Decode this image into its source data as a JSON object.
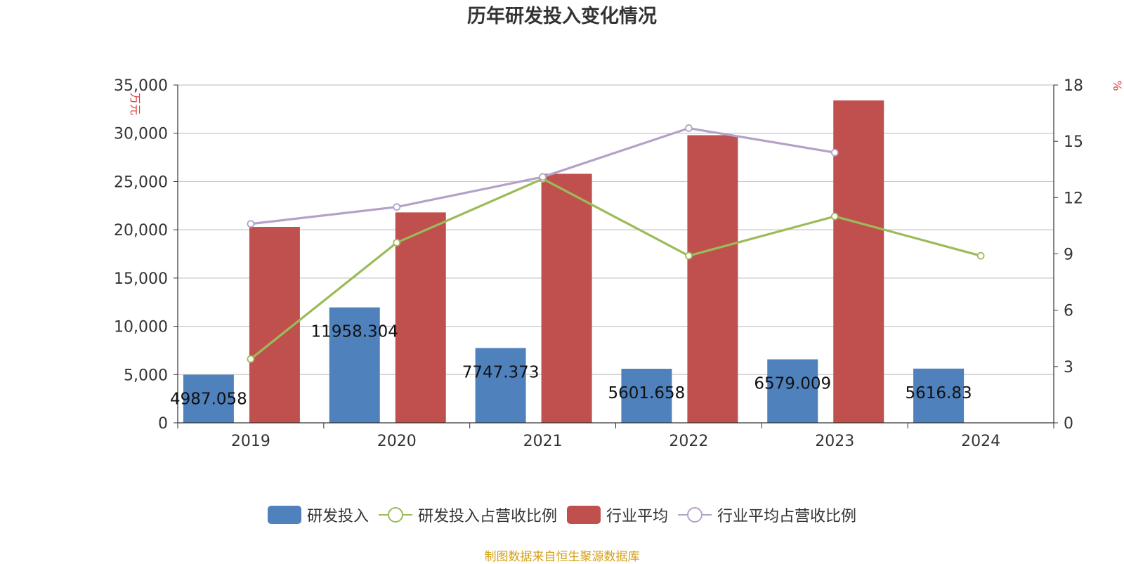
{
  "chart_data": {
    "type": "bar",
    "title": "历年研发投入变化情况",
    "categories": [
      "2019",
      "2020",
      "2021",
      "2022",
      "2023",
      "2024"
    ],
    "y_left": {
      "label": "万元",
      "ticks": [
        "0",
        "5,000",
        "10,000",
        "15,000",
        "20,000",
        "25,000",
        "30,000",
        "35,000"
      ],
      "min": 0,
      "max": 35000
    },
    "y_right": {
      "label": "%",
      "ticks": [
        "0",
        "3",
        "6",
        "9",
        "12",
        "15",
        "18"
      ],
      "min": 0,
      "max": 18
    },
    "series": [
      {
        "name": "研发投入",
        "kind": "bar",
        "axis": "left",
        "color": "#4f81bd",
        "values": [
          4987.058,
          11958.304,
          7747.373,
          5601.658,
          6579.009,
          5616.83
        ],
        "labels": [
          "4987.058",
          "11958.304",
          "7747.373",
          "5601.658",
          "6579.009",
          "5616.83"
        ]
      },
      {
        "name": "研发投入占营收比例",
        "kind": "line",
        "axis": "right",
        "color": "#9bbb59",
        "values": [
          3.4,
          9.6,
          13.0,
          8.9,
          11.0,
          8.9
        ]
      },
      {
        "name": "行业平均",
        "kind": "bar",
        "axis": "left",
        "color": "#c0504d",
        "values": [
          20300,
          21800,
          25800,
          29800,
          33400,
          null
        ]
      },
      {
        "name": "行业平均占营收比例",
        "kind": "line",
        "axis": "right",
        "color": "#b3a2c7",
        "values": [
          10.6,
          11.5,
          13.1,
          15.7,
          14.4,
          null
        ]
      }
    ],
    "grid": true,
    "legend_position": "bottom"
  },
  "source_note": "制图数据来自恒生聚源数据库"
}
